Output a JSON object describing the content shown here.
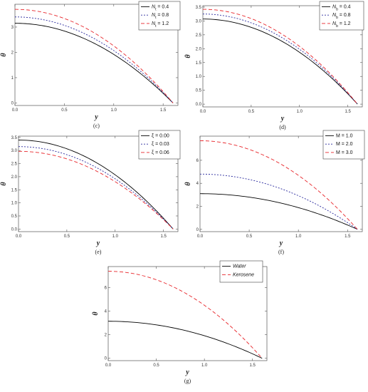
{
  "chart_data": [
    {
      "id": "c",
      "type": "line",
      "caption": "(c)",
      "xlabel": "y",
      "ylabel": "θ",
      "xlim": [
        0,
        1.65
      ],
      "ylim": [
        -0.1,
        3.9
      ],
      "xticks": [
        0.0,
        0.5,
        1.0,
        1.5
      ],
      "yticks": [
        0,
        1,
        2,
        3
      ],
      "legend_position": "top-right",
      "series": [
        {
          "name": "N_t = 0.4",
          "legend_main": "N",
          "legend_sub": "t",
          "legend_value": " = 0.4",
          "style": "solid",
          "color": "#000000",
          "y0": 3.15,
          "xmax": 1.6
        },
        {
          "name": "N_t = 0.8",
          "legend_main": "N",
          "legend_sub": "t",
          "legend_value": " = 0.8",
          "style": "dotted",
          "color": "#2b2b9e",
          "y0": 3.4,
          "xmax": 1.6
        },
        {
          "name": "N_t = 1.2",
          "legend_main": "N",
          "legend_sub": "t",
          "legend_value": " = 1.2",
          "style": "dashed",
          "color": "#e8262b",
          "y0": 3.7,
          "xmax": 1.6
        }
      ]
    },
    {
      "id": "d",
      "type": "line",
      "caption": "(d)",
      "xlabel": "y",
      "ylabel": "θ",
      "xlim": [
        0,
        1.65
      ],
      "ylim": [
        -0.1,
        3.55
      ],
      "xticks": [
        0.0,
        0.5,
        1.0,
        1.5
      ],
      "yticks": [
        0.0,
        0.5,
        1.0,
        1.5,
        2.0,
        2.5,
        3.0,
        3.5
      ],
      "legend_position": "top-right",
      "series": [
        {
          "name": "N_b = 0.4",
          "legend_main": "N",
          "legend_sub": "b",
          "legend_value": " = 0.4",
          "style": "solid",
          "color": "#000000",
          "y0": 3.07,
          "xmax": 1.6
        },
        {
          "name": "N_b = 0.8",
          "legend_main": "N",
          "legend_sub": "b",
          "legend_value": " = 0.8",
          "style": "dotted",
          "color": "#2b2b9e",
          "y0": 3.25,
          "xmax": 1.6
        },
        {
          "name": "N_b = 1.2",
          "legend_main": "N",
          "legend_sub": "b",
          "legend_value": " = 1.2",
          "style": "dashed",
          "color": "#e8262b",
          "y0": 3.42,
          "xmax": 1.6
        }
      ]
    },
    {
      "id": "e",
      "type": "line",
      "caption": "(e)",
      "xlabel": "y",
      "ylabel": "θ",
      "xlim": [
        0,
        1.65
      ],
      "ylim": [
        -0.1,
        3.55
      ],
      "xticks": [
        0.0,
        0.5,
        1.0,
        1.5
      ],
      "yticks": [
        0.0,
        0.5,
        1.0,
        1.5,
        2.0,
        2.5,
        3.0,
        3.5
      ],
      "legend_position": "top-right",
      "series": [
        {
          "name": "ξ = 0.00",
          "legend_main": "ξ = 0.00",
          "legend_sub": "",
          "legend_value": "",
          "style": "solid",
          "color": "#000000",
          "y0": 3.4,
          "xmax": 1.6
        },
        {
          "name": "ξ = 0.03",
          "legend_main": "ξ = 0.03",
          "legend_sub": "",
          "legend_value": "",
          "style": "dotted",
          "color": "#2b2b9e",
          "y0": 3.15,
          "xmax": 1.6
        },
        {
          "name": "ξ = 0.06",
          "legend_main": "ξ = 0.06",
          "legend_sub": "",
          "legend_value": "",
          "style": "dashed",
          "color": "#e8262b",
          "y0": 2.97,
          "xmax": 1.6
        }
      ]
    },
    {
      "id": "f",
      "type": "line",
      "caption": "(f)",
      "xlabel": "y",
      "ylabel": "θ",
      "xlim": [
        0,
        1.65
      ],
      "ylim": [
        -0.2,
        8.1
      ],
      "xticks": [
        0.0,
        0.5,
        1.0,
        1.5
      ],
      "yticks": [
        0,
        2,
        4,
        6
      ],
      "legend_position": "top-right",
      "series": [
        {
          "name": "M = 1.0",
          "legend_main": "M = 1.0",
          "legend_sub": "",
          "legend_value": "",
          "style": "solid",
          "color": "#000000",
          "y0": 3.1,
          "xmax": 1.6
        },
        {
          "name": "M = 2.0",
          "legend_main": "M = 2.0",
          "legend_sub": "",
          "legend_value": "",
          "style": "dotted",
          "color": "#2b2b9e",
          "y0": 4.8,
          "xmax": 1.6
        },
        {
          "name": "M = 3.0",
          "legend_main": "M = 3.0",
          "legend_sub": "",
          "legend_value": "",
          "style": "dashed",
          "color": "#e8262b",
          "y0": 7.7,
          "xmax": 1.6
        }
      ]
    },
    {
      "id": "g",
      "type": "line",
      "caption": "(g)",
      "xlabel": "y",
      "ylabel": "θ",
      "xlim": [
        0,
        1.65
      ],
      "ylim": [
        -0.2,
        7.8
      ],
      "xticks": [
        0.0,
        0.5,
        1.0,
        1.5
      ],
      "yticks": [
        0,
        2,
        4,
        6
      ],
      "legend_position": "top-right",
      "legend_italic": true,
      "series": [
        {
          "name": "Water",
          "legend_main": "Water",
          "legend_sub": "",
          "legend_value": "",
          "style": "solid",
          "color": "#000000",
          "y0": 3.15,
          "xmax": 1.6
        },
        {
          "name": "Kerosene",
          "legend_main": "Kerosene",
          "legend_sub": "",
          "legend_value": "",
          "style": "dashed",
          "color": "#e8262b",
          "y0": 7.4,
          "xmax": 1.6
        }
      ]
    }
  ]
}
